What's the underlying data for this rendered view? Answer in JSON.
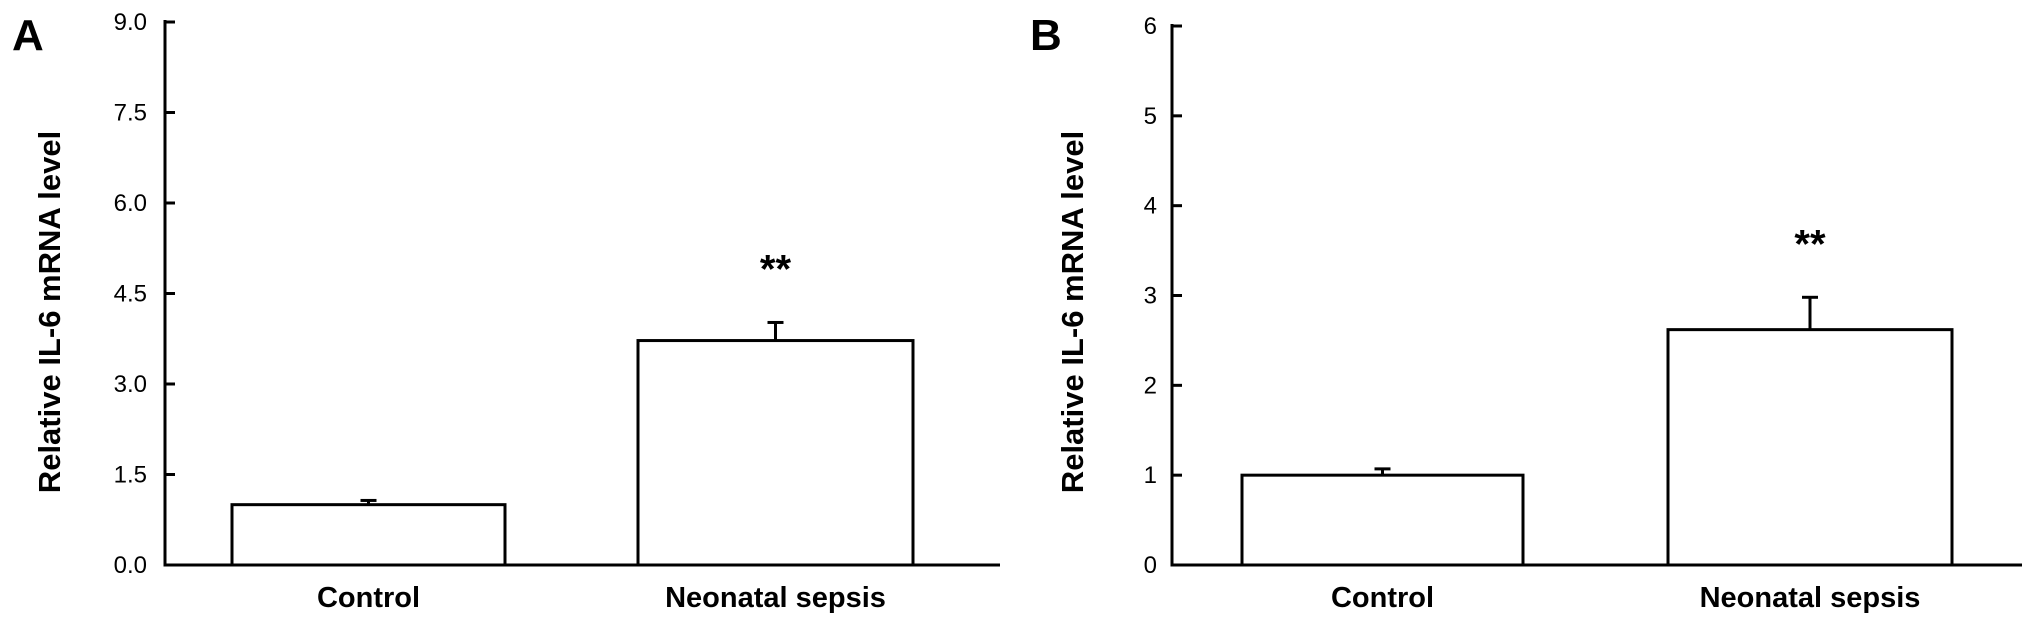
{
  "chart_data": [
    {
      "type": "bar",
      "panel": "A",
      "categories": [
        "Control",
        "Neonatal sepsis"
      ],
      "values": [
        1.0,
        3.72
      ],
      "errors": [
        0.07,
        0.3
      ],
      "annotations": [
        "",
        "**"
      ],
      "ylabel": "Relative IL-6 mRNA level",
      "xlabel": "",
      "ylim": [
        0,
        9.0
      ],
      "yticks": [
        "0.0",
        "1.5",
        "3.0",
        "4.5",
        "6.0",
        "7.5",
        "9.0"
      ],
      "grid": false,
      "colors": {
        "bar_fill": "#ffffff",
        "stroke": "#000000"
      }
    },
    {
      "type": "bar",
      "panel": "B",
      "categories": [
        "Control",
        "Neonatal sepsis"
      ],
      "values": [
        1.0,
        2.62
      ],
      "errors": [
        0.07,
        0.36
      ],
      "annotations": [
        "",
        "**"
      ],
      "ylabel": "Relative IL-6 mRNA level",
      "xlabel": "",
      "ylim": [
        0,
        6
      ],
      "yticks": [
        "0",
        "1",
        "2",
        "3",
        "4",
        "5",
        "6"
      ],
      "grid": false,
      "colors": {
        "bar_fill": "#ffffff",
        "stroke": "#000000"
      }
    }
  ]
}
